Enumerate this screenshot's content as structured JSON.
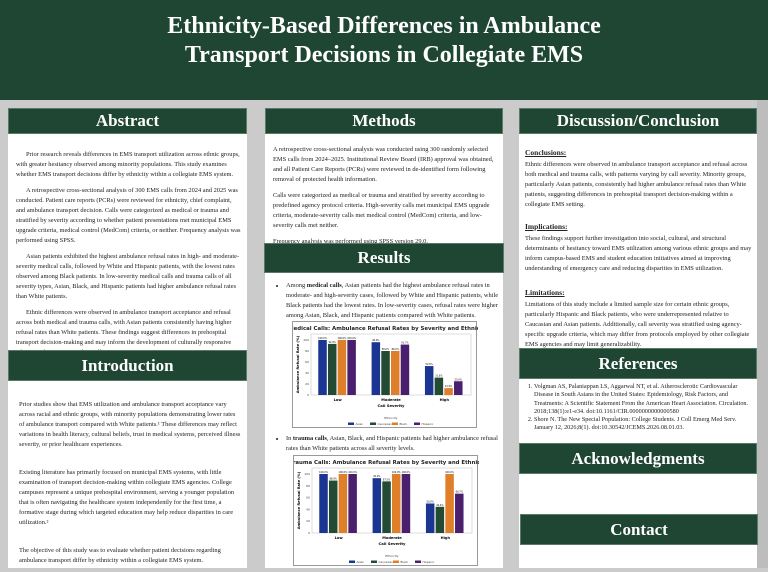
{
  "title": "Ethnicity-Based Differences in Ambulance Transport Decisions in Collegiate EMS",
  "abstract": {
    "heading": "Abstract",
    "paragraphs": [
      "Prior research reveals differences in EMS transport utilization across ethnic groups, with greater hesitancy observed among minority populations. This study examines whether EMS transport decisions differ by ethnicity within a collegiate EMS system.",
      "A retrospective cross-sectional analysis of 300 EMS calls from 2024 and 2025 was conducted. Patient care reports (PCRs) were reviewed for ethnicity, chief complaint, and ambulance transport decision. Calls were categorized as medical or trauma and stratified by severity according to whether patient presentations met municipal EMS upgrade criteria, medical control (MedCom) criteria, or neither. Frequency analysis was performed using SPSS.",
      "Asian patients exhibited the highest ambulance refusal rates in high- and moderate-severity medical calls, followed by White and Hispanic patients, with the lowest rates observed among Black patients. In low-severity medical calls and trauma calls of all severity types, Asian, Black, and Hispanic patients had higher ambulance refusal rates than White patients.",
      "Ethnic differences were observed in ambulance transport acceptance and refusal across both medical and trauma calls, with Asian patients consistently having higher refusal rates than White patients. These findings suggest differences in prehospital transport decision-making and may inform the development of culturally responsive educational initiatives within collegiate EMS systems."
    ]
  },
  "introduction": {
    "heading": "Introduction",
    "paragraphs": [
      "Prior studies show that EMS utilization and ambulance transport acceptance vary across racial and ethnic groups, with minority populations demonstrating lower rates of ambulance transport compared with White patients.¹ These differences may reflect variations in health literacy, cultural beliefs, trust in medical systems, perceived illness severity, or prior healthcare experiences.",
      "Existing literature has primarily focused on municipal EMS systems, with little examination of transport decision-making within collegiate EMS agencies. College campuses represent a unique prehospital environment, serving a younger population that is often navigating the healthcare system independently for the first time, a formative stage during which targeted education may help reduce disparities in care utilization.²",
      "The objective of this study was to evaluate  whether patient decisions regarding ambulance transport differ by ethnicity within a collegiate EMS system."
    ]
  },
  "methods": {
    "heading": "Methods",
    "paragraphs": [
      "A retrospective cross-sectional analysis was conducted using 300 randomly selected EMS calls from 2024–2025. Institutional Review Board (IRB) approval was obtained, and all Patient Care Reports (PCRs) were reviewed in de-identified form following removal of protected health information.",
      "Calls were categorized as medical or trauma and stratified by severity according to predefined agency protocol criteria. High-severity calls met municipal EMS upgrade criteria, moderate-severity calls met medical control (MedCom) criteria, and low-severity calls met neither.",
      "Frequency analysis was performed using SPSS version 29.0."
    ]
  },
  "results": {
    "heading": "Results",
    "bullet1": {
      "pre": "Among ",
      "bold": "medical calls",
      "post": ", Asian patients had the highest ambulance refusal rates in moderate- and high-severity cases, followed by White and Hispanic patients, while Black patients had the lowest rates. In low-severity cases, refusal rates were higher among Asian, Black, and Hispanic patients compared with White patients."
    },
    "bullet2": {
      "pre": "In ",
      "bold": "trauma calls",
      "post": ", Asian, Black, and Hispanic patients had higher ambulance refusal rates than White patients across all severity levels."
    }
  },
  "discussion": {
    "heading": "Discussion/Conclusion",
    "sections": [
      {
        "title": "Conclusions:",
        "text": "Ethnic differences were observed in ambulance transport acceptance and refusal across both medical and trauma calls, with patterns varying by call severity. Minority groups, particularly Asian patients, consistently had higher ambulance refusal rates than White patients, suggesting differences in prehospital transport decision-making within a collegiate EMS setting."
      },
      {
        "title": "Implications:",
        "text": "These findings support further investigation into social, cultural, and structural determinants of hesitancy toward EMS utilization among various ethnic groups and may inform campus-based EMS and student education initiatives aimed at improving understanding of emergency care and reducing disparities in EMS utilization."
      },
      {
        "title": "Limitations:",
        "text": "Limitations of this study include a limited sample size for certain ethnic groups, particularly Hispanic and Black patients, who were underrepresented relative to Caucasian and Asian patients. Additionally, call severity was stratified using agency-specific upgrade criteria, which may differ from protocols employed by other collegiate EMS agencies and may limit generalizability."
      }
    ]
  },
  "references": {
    "heading": "References",
    "items": [
      "Volgman AS, Palaniappan LS, Aggarwal NT, et al. Atherosclerotic Cardiovascular Disease in South Asians in the United States: Epidemiology, Risk Factors, and Treatments: A Scientific Statement From the American Heart Association. Circulation. 2018;138(1):e1-e34. doi:10.1161/CIR.0000000000000580",
      "Shore N. The New Special Population: College Students. J Coll Emerg Med Serv. January 12, 2026;8(1). doi:10.30542/JCEMS.2026.08.01.03."
    ]
  },
  "acknowledgments": {
    "heading": "Acknowledgments"
  },
  "contact": {
    "heading": "Contact"
  },
  "colors": {
    "header_bg": "#1f4533",
    "Asian": "#1b3593",
    "Caucasian": "#234a33",
    "Black": "#e07f2a",
    "Hispanic": "#4a1f6e"
  },
  "chart_data": [
    {
      "type": "bar",
      "title": "Medical Calls: Ambulance Refusal Rates by Severity and Ethnicity",
      "xlabel": "Call Severity",
      "ylabel": "Ambulance Refusal Rate (%)",
      "ylim": [
        0,
        100
      ],
      "yticks": [
        0,
        20,
        40,
        60,
        80,
        100
      ],
      "legend_title": "Ethnicity",
      "legend": "bottom",
      "categories": [
        "Low",
        "Moderate",
        "High"
      ],
      "series": [
        {
          "name": "Asian",
          "values": [
            100.0,
            96.0,
            52.6
          ]
        },
        {
          "name": "Caucasian",
          "values": [
            92.9,
            80.0,
            31.6
          ]
        },
        {
          "name": "Black",
          "values": [
            100.0,
            80.0,
            12.5
          ]
        },
        {
          "name": "Hispanic",
          "values": [
            100.0,
            91.7,
            25.0
          ]
        }
      ]
    },
    {
      "type": "bar",
      "title": "Trauma Calls: Ambulance Refusal Rates by Severity and Ethnicity",
      "xlabel": "Call Severity",
      "ylabel": "Ambulance Refusal Rate (%)",
      "ylim": [
        0,
        100
      ],
      "yticks": [
        0,
        20,
        40,
        60,
        80,
        100
      ],
      "legend_title": "Ethnicity",
      "legend": "bottom",
      "categories": [
        "Low",
        "Moderate",
        "High"
      ],
      "series": [
        {
          "name": "Asian",
          "values": [
            100.0,
            92.9,
            50.0
          ]
        },
        {
          "name": "Caucasian",
          "values": [
            88.9,
            87.5,
            44.4
          ]
        },
        {
          "name": "Black",
          "values": [
            100.0,
            100.0,
            100.0
          ]
        },
        {
          "name": "Hispanic",
          "values": [
            100.0,
            100.0,
            66.7
          ]
        }
      ]
    }
  ]
}
